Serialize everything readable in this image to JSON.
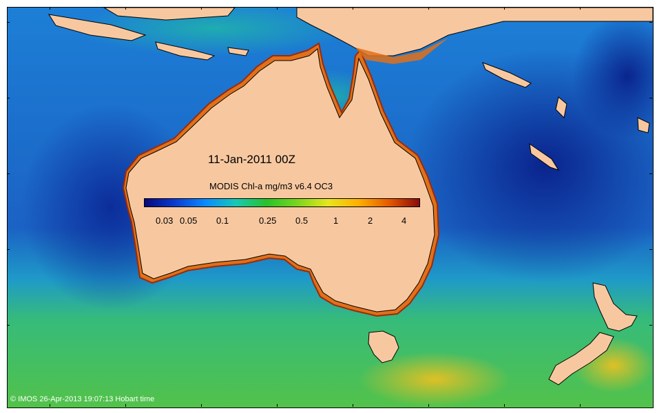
{
  "map": {
    "title": "11-Jan-2011 00Z",
    "legend": {
      "title": "MODIS Chl-a mg/m3 v6.4 OC3",
      "tick_labels": [
        "0.03",
        "0.05",
        "0.1",
        "0.25",
        "0.5",
        "1",
        "2",
        "4"
      ],
      "colormap": [
        "#08087a",
        "#0a3cd2",
        "#0a8cff",
        "#17c9b4",
        "#29c229",
        "#7ad61e",
        "#e6e61e",
        "#ffb000",
        "#e65a00",
        "#8b0a0a"
      ]
    },
    "copyright": "© IMOS 26-Apr-2013 19:07:13 Hobart time",
    "colors": {
      "land": "#f7c8a0",
      "open_ocean": "#1a5fc4",
      "deep_ocean": "#0c2f9a",
      "southern_ocean": "#3db85c",
      "coastal_bloom": "#e08a1e"
    }
  }
}
